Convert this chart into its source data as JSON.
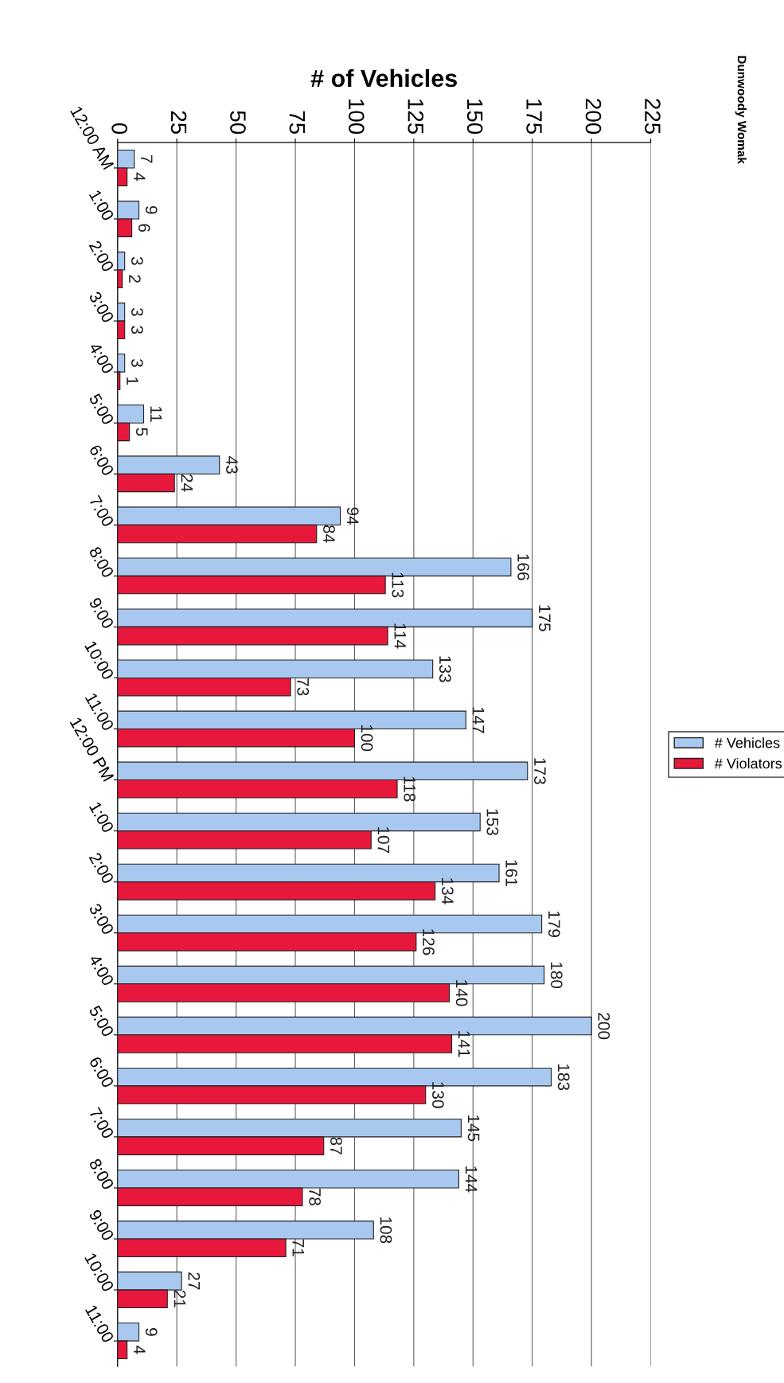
{
  "chart_data": {
    "type": "bar",
    "orientation": "horizontal",
    "xlabel": "# of Vehicles",
    "annotations": [
      "Dunwoody Womak"
    ],
    "categories": [
      "12:00 AM",
      "1:00",
      "2:00",
      "3:00",
      "4:00",
      "5:00",
      "6:00",
      "7:00",
      "8:00",
      "9:00",
      "10:00",
      "11:00",
      "12:00 PM",
      "1:00",
      "2:00",
      "3:00",
      "4:00",
      "5:00",
      "6:00",
      "7:00",
      "8:00",
      "9:00",
      "10:00",
      "11:00"
    ],
    "series": [
      {
        "name": "# Vehicles",
        "color": "#a9c8f0",
        "values": [
          7,
          9,
          3,
          3,
          3,
          11,
          43,
          94,
          166,
          175,
          133,
          147,
          173,
          153,
          161,
          179,
          180,
          200,
          183,
          145,
          144,
          108,
          27,
          9
        ]
      },
      {
        "name": "# Violators",
        "color": "#e8183c",
        "values": [
          4,
          6,
          2,
          3,
          1,
          5,
          24,
          84,
          113,
          114,
          73,
          100,
          118,
          107,
          134,
          126,
          140,
          141,
          130,
          87,
          78,
          71,
          21,
          4
        ]
      }
    ],
    "xlim": [
      0,
      225
    ],
    "xticks": [
      0,
      25,
      50,
      75,
      100,
      125,
      150,
      175,
      200,
      225
    ],
    "grid": "x",
    "legend": "right",
    "data_labels": true
  }
}
